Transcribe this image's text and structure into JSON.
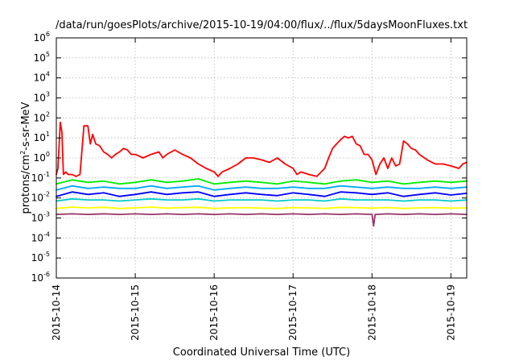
{
  "chart_data": {
    "type": "line",
    "title": "/data/run/goesPlots/archive/2015-10-19/04:00/flux/../flux/5daysMoonFluxes.txt",
    "xlabel": "Coordinated Universal Time (UTC)",
    "ylabel": "protons/cm²-s-sr-MeV",
    "ylabel_parts": {
      "pre": "protons/cm",
      "sup": "2",
      "post": "-s-sr-MeV"
    },
    "yscale": "log",
    "ylim": [
      1e-06,
      1000000
    ],
    "xlim_days": [
      0,
      5.2
    ],
    "x_ticks": [
      "2015-10-14",
      "2015-10-15",
      "2015-10-16",
      "2015-10-17",
      "2015-10-18",
      "2015-10-19"
    ],
    "y_ticks": [
      {
        "mant": "10",
        "exp": "-6"
      },
      {
        "mant": "10",
        "exp": "-5"
      },
      {
        "mant": "10",
        "exp": "-4"
      },
      {
        "mant": "10",
        "exp": "-3"
      },
      {
        "mant": "10",
        "exp": "-2"
      },
      {
        "mant": "10",
        "exp": "-1"
      },
      {
        "mant": "10",
        "exp": "0"
      },
      {
        "mant": "10",
        "exp": "1"
      },
      {
        "mant": "10",
        "exp": "2"
      },
      {
        "mant": "10",
        "exp": "3"
      },
      {
        "mant": "10",
        "exp": "4"
      },
      {
        "mant": "10",
        "exp": "5"
      },
      {
        "mant": "10",
        "exp": "6"
      }
    ],
    "grid": true,
    "series": [
      {
        "color": "#ff0000",
        "x": [
          0,
          0.02,
          0.05,
          0.07,
          0.09,
          0.12,
          0.15,
          0.2,
          0.25,
          0.3,
          0.35,
          0.4,
          0.43,
          0.46,
          0.5,
          0.55,
          0.6,
          0.65,
          0.7,
          0.75,
          0.8,
          0.85,
          0.9,
          0.95,
          1.0,
          1.1,
          1.2,
          1.3,
          1.35,
          1.4,
          1.5,
          1.6,
          1.7,
          1.8,
          1.9,
          2.0,
          2.05,
          2.1,
          2.2,
          2.3,
          2.4,
          2.5,
          2.6,
          2.7,
          2.8,
          2.9,
          3.0,
          3.05,
          3.1,
          3.2,
          3.3,
          3.4,
          3.45,
          3.5,
          3.55,
          3.6,
          3.65,
          3.7,
          3.75,
          3.8,
          3.85,
          3.9,
          3.95,
          4.0,
          4.05,
          4.1,
          4.15,
          4.2,
          4.25,
          4.3,
          4.35,
          4.4,
          4.45,
          4.5,
          4.55,
          4.6,
          4.7,
          4.8,
          4.9,
          5.0,
          5.1,
          5.15,
          5.2
        ],
        "values": [
          0.15,
          0.3,
          60,
          20,
          0.15,
          0.2,
          0.15,
          0.15,
          0.12,
          0.15,
          40,
          40,
          5,
          15,
          5,
          4,
          2,
          1.5,
          1,
          1.5,
          2,
          3,
          2.5,
          1.5,
          1.5,
          1,
          1.5,
          2,
          1,
          1.5,
          2.5,
          1.5,
          1,
          0.5,
          0.3,
          0.2,
          0.12,
          0.2,
          0.3,
          0.5,
          1,
          1,
          0.8,
          0.6,
          1,
          0.5,
          0.3,
          0.15,
          0.2,
          0.15,
          0.12,
          0.3,
          1,
          3,
          5,
          8,
          12,
          10,
          12,
          5,
          4,
          1.5,
          1.5,
          0.8,
          0.15,
          0.5,
          1,
          0.3,
          1,
          0.4,
          0.5,
          7,
          5,
          3,
          2.5,
          1.5,
          0.8,
          0.5,
          0.5,
          0.4,
          0.3,
          0.5,
          0.6
        ]
      },
      {
        "color": "#00ee00",
        "x": [
          0,
          0.2,
          0.4,
          0.6,
          0.8,
          1.0,
          1.2,
          1.4,
          1.6,
          1.8,
          2.0,
          2.2,
          2.4,
          2.6,
          2.8,
          3.0,
          3.2,
          3.4,
          3.6,
          3.8,
          4.0,
          4.2,
          4.4,
          4.6,
          4.8,
          5.0,
          5.2
        ],
        "values": [
          0.05,
          0.08,
          0.06,
          0.07,
          0.05,
          0.06,
          0.08,
          0.06,
          0.07,
          0.09,
          0.05,
          0.06,
          0.07,
          0.06,
          0.05,
          0.07,
          0.06,
          0.05,
          0.07,
          0.08,
          0.06,
          0.07,
          0.05,
          0.06,
          0.07,
          0.06,
          0.07
        ]
      },
      {
        "color": "#00aaff",
        "x": [
          0,
          0.2,
          0.4,
          0.6,
          0.8,
          1.0,
          1.2,
          1.4,
          1.6,
          1.8,
          2.0,
          2.2,
          2.4,
          2.6,
          2.8,
          3.0,
          3.2,
          3.4,
          3.6,
          3.8,
          4.0,
          4.2,
          4.4,
          4.6,
          4.8,
          5.0,
          5.2
        ],
        "values": [
          0.025,
          0.04,
          0.03,
          0.035,
          0.03,
          0.03,
          0.04,
          0.03,
          0.035,
          0.04,
          0.025,
          0.03,
          0.035,
          0.03,
          0.03,
          0.035,
          0.03,
          0.03,
          0.04,
          0.035,
          0.03,
          0.035,
          0.03,
          0.03,
          0.035,
          0.03,
          0.035
        ]
      },
      {
        "color": "#0000ff",
        "x": [
          0,
          0.2,
          0.4,
          0.6,
          0.8,
          1.0,
          1.2,
          1.4,
          1.6,
          1.8,
          2.0,
          2.2,
          2.4,
          2.6,
          2.8,
          3.0,
          3.2,
          3.4,
          3.6,
          3.8,
          4.0,
          4.2,
          4.4,
          4.6,
          4.8,
          5.0,
          5.2
        ],
        "values": [
          0.012,
          0.02,
          0.015,
          0.018,
          0.012,
          0.015,
          0.02,
          0.015,
          0.018,
          0.02,
          0.012,
          0.015,
          0.018,
          0.015,
          0.013,
          0.018,
          0.015,
          0.012,
          0.02,
          0.018,
          0.015,
          0.018,
          0.012,
          0.015,
          0.018,
          0.014,
          0.017
        ]
      },
      {
        "color": "#00cccc",
        "x": [
          0,
          0.2,
          0.4,
          0.6,
          0.8,
          1.0,
          1.2,
          1.4,
          1.6,
          1.8,
          2.0,
          2.2,
          2.4,
          2.6,
          2.8,
          3.0,
          3.2,
          3.4,
          3.6,
          3.8,
          4.0,
          4.2,
          4.4,
          4.6,
          4.8,
          5.0,
          5.2
        ],
        "values": [
          0.007,
          0.009,
          0.008,
          0.008,
          0.007,
          0.008,
          0.009,
          0.008,
          0.008,
          0.009,
          0.007,
          0.008,
          0.008,
          0.008,
          0.007,
          0.008,
          0.008,
          0.007,
          0.009,
          0.008,
          0.008,
          0.008,
          0.007,
          0.008,
          0.008,
          0.007,
          0.008
        ]
      },
      {
        "color": "#ffff00",
        "x": [
          0,
          0.2,
          0.4,
          0.6,
          0.8,
          1.0,
          1.2,
          1.4,
          1.6,
          1.8,
          2.0,
          2.2,
          2.4,
          2.6,
          2.8,
          3.0,
          3.2,
          3.4,
          3.6,
          3.8,
          4.0,
          4.2,
          4.4,
          4.6,
          4.8,
          5.0,
          5.2
        ],
        "values": [
          0.003,
          0.0035,
          0.0032,
          0.0034,
          0.003,
          0.0032,
          0.0035,
          0.0031,
          0.0033,
          0.0034,
          0.003,
          0.0032,
          0.0033,
          0.0031,
          0.003,
          0.0033,
          0.0032,
          0.003,
          0.0034,
          0.0033,
          0.0031,
          0.0033,
          0.003,
          0.0032,
          0.0033,
          0.0031,
          0.0032
        ]
      },
      {
        "color": "#993366",
        "x": [
          0,
          0.2,
          0.4,
          0.6,
          0.8,
          1.0,
          1.2,
          1.4,
          1.6,
          1.8,
          2.0,
          2.2,
          2.4,
          2.6,
          2.8,
          3.0,
          3.2,
          3.4,
          3.6,
          3.8,
          4.0,
          4.02,
          4.04,
          4.2,
          4.4,
          4.6,
          4.8,
          5.0,
          5.2
        ],
        "values": [
          0.0015,
          0.0016,
          0.0015,
          0.0016,
          0.0015,
          0.0016,
          0.0015,
          0.0016,
          0.0015,
          0.0016,
          0.0015,
          0.0016,
          0.0015,
          0.0016,
          0.0015,
          0.0016,
          0.0015,
          0.0016,
          0.0015,
          0.0016,
          0.0015,
          0.0004,
          0.0015,
          0.0016,
          0.0015,
          0.0016,
          0.0015,
          0.0016,
          0.0015
        ]
      }
    ]
  }
}
